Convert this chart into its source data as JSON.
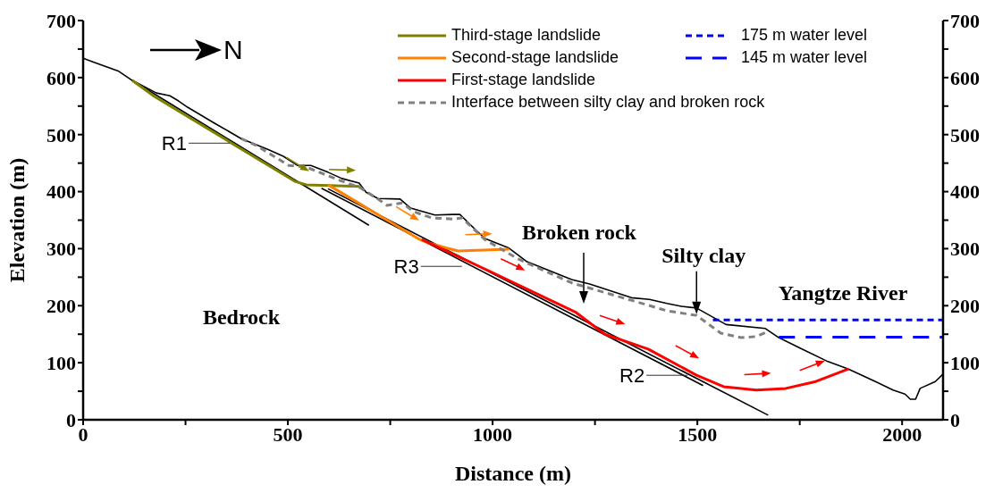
{
  "chart_data": {
    "type": "line",
    "xlabel": "Distance (m)",
    "ylabel": "Elevation (m)",
    "xlim": [
      0,
      2100
    ],
    "xticks": [
      0,
      {
        "value": 250,
        "label": null
      },
      500,
      {
        "value": 750,
        "label": null
      },
      1000,
      {
        "value": 1250,
        "label": null
      },
      1500,
      {
        "value": 1750,
        "label": null
      },
      2000
    ],
    "ylim": [
      0,
      700
    ],
    "yticks": [
      0,
      {
        "value": 50,
        "label": null
      },
      100,
      {
        "value": 150,
        "label": null
      },
      200,
      {
        "value": 250,
        "label": null
      },
      300,
      {
        "value": 350,
        "label": null
      },
      400,
      {
        "value": 450,
        "label": null
      },
      500,
      {
        "value": 550,
        "label": null
      },
      600,
      {
        "value": 650,
        "label": null
      },
      700
    ],
    "y2lim": [
      0,
      700
    ],
    "y2ticks": [
      0,
      {
        "value": 50,
        "label": null
      },
      100,
      {
        "value": 150,
        "label": null
      },
      200,
      {
        "value": 250,
        "label": null
      },
      300,
      {
        "value": 350,
        "label": null
      },
      400,
      {
        "value": 450,
        "label": null
      },
      500,
      {
        "value": 550,
        "label": null
      },
      600,
      {
        "value": 650,
        "label": null
      },
      700
    ],
    "legend": "top right",
    "marker": "none",
    "series": [
      {
        "color": "#000000",
        "line_style": "solid",
        "x": [
          0,
          22,
          87,
          120,
          179,
          212,
          233,
          255,
          321,
          386,
          451,
          489,
          523,
          556,
          598,
          632,
          674,
          691,
          720,
          774,
          800,
          859,
          903,
          920,
          960,
          981,
          1040,
          1084,
          1193,
          1237,
          1339,
          1383,
          1426,
          1461,
          1498,
          1570,
          1666,
          1699,
          1753,
          1819,
          1869,
          1935,
          1978,
          2007,
          2020,
          2033,
          2044,
          2081,
          2100
        ],
        "values": [
          634,
          628,
          611,
          595,
          573,
          568,
          559,
          548,
          520,
          493,
          474,
          462,
          446,
          446,
          434,
          423,
          415,
          399,
          388,
          387,
          371,
          359,
          360,
          360,
          332,
          318,
          301,
          277,
          246,
          238,
          214,
          211,
          204,
          199,
          196,
          167,
          160,
          144,
          125,
          102,
          89,
          67,
          52,
          45,
          36,
          36,
          55,
          67,
          80
        ]
      },
      {
        "color": "#000000",
        "line_style": "solid",
        "x": [
          120,
          698
        ],
        "values": [
          595,
          341
        ]
      },
      {
        "color": "#000000",
        "line_style": "solid",
        "x": [
          582,
          1514
        ],
        "values": [
          406,
          60
        ]
      },
      {
        "color": "#000000",
        "line_style": "solid",
        "x": [
          598,
          1673
        ],
        "values": [
          405,
          8
        ]
      },
      {
        "name": "Third-stage landslide",
        "color": "#808000",
        "line_style": "solid",
        "x": [
          120,
          174,
          517,
          545,
          676
        ],
        "values": [
          595,
          567,
          418,
          412,
          409
        ]
      },
      {
        "name": "Second-stage landslide",
        "color": "#ff8000",
        "line_style": "solid",
        "x": [
          598,
          822,
          844,
          888,
          916,
          1040
        ],
        "values": [
          412,
          316,
          310,
          301,
          296,
          299
        ]
      },
      {
        "name": "First-stage landslide",
        "color": "#ff0000",
        "line_style": "solid",
        "x": [
          827,
          1000,
          1204,
          1274,
          1380,
          1498,
          1564,
          1644,
          1716,
          1789,
          1869
        ],
        "values": [
          316,
          258,
          188,
          150,
          124,
          78,
          58,
          52,
          55,
          67,
          89
        ]
      },
      {
        "name": "Interface between silty clay and broken rock",
        "color": "#808080",
        "line_style": "dotted",
        "x": [
          386,
          423,
          502,
          545,
          626,
          676,
          720,
          742,
          779,
          807,
          851,
          903,
          925,
          981,
          1062,
          1193,
          1346,
          1426,
          1498,
          1557,
          1607,
          1644,
          1673
        ],
        "values": [
          493,
          481,
          446,
          443,
          420,
          407,
          387,
          376,
          380,
          365,
          354,
          352,
          354,
          316,
          282,
          240,
          208,
          191,
          183,
          152,
          144,
          146,
          155
        ]
      },
      {
        "name": "175 m water level",
        "color": "#0000ff",
        "line_style": "dotted",
        "x": [
          1538,
          2100
        ],
        "values": [
          175,
          175
        ]
      },
      {
        "name": "145 m water level",
        "color": "#0000ff",
        "line_style": "dashed",
        "x": [
          1699,
          2100
        ],
        "values": [
          145,
          145
        ]
      }
    ],
    "annotations": [
      "N",
      {
        "text": "R1",
        "x": 358,
        "y": 485
      },
      {
        "text": "R3",
        "x": 925,
        "y": 269
      },
      {
        "text": "R2",
        "x": 1476,
        "y": 78
      },
      "Broken rock",
      {
        "text": "Silty clay",
        "x": 1498,
        "y": 185
      },
      "Bedrock",
      "Yangtze River"
    ]
  }
}
